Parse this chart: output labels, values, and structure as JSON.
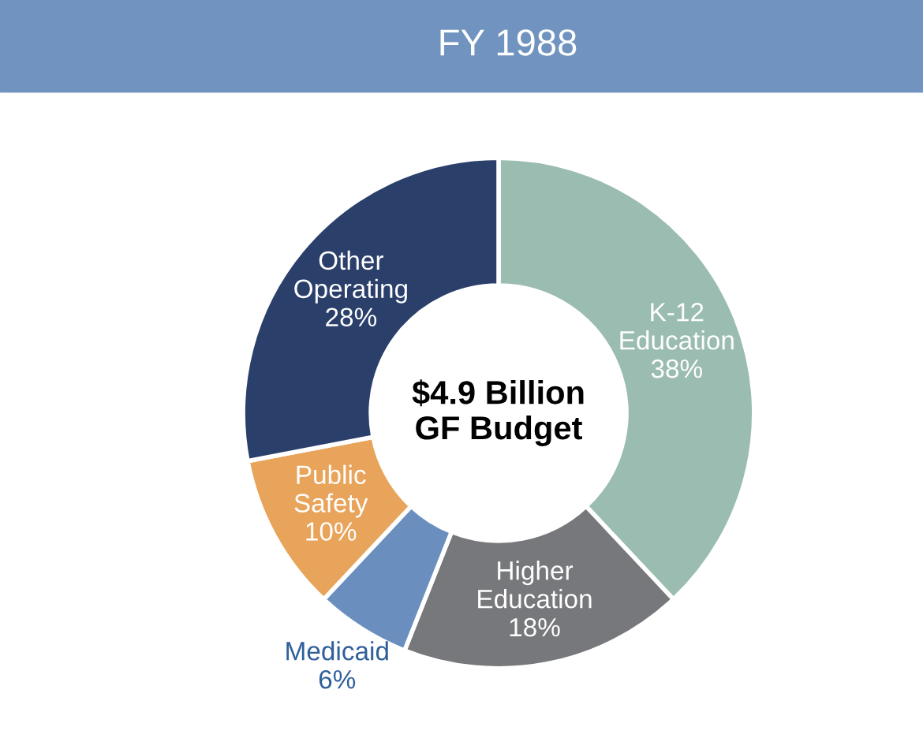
{
  "chart_data": {
    "type": "donut",
    "title": "FY 1988",
    "categories": [
      "K-12\nEducation",
      "Higher\nEducation",
      "Medicaid",
      "Public\nSafety",
      "Other\nOperating"
    ],
    "values": [
      38,
      18,
      6,
      10,
      28
    ],
    "value_labels": [
      "38%",
      "18%",
      "6%",
      "10%",
      "28%"
    ],
    "colors": [
      "#9bbcb0",
      "#77787b",
      "#6a8fbf",
      "#e8a45a",
      "#2b3f6b"
    ],
    "annotations": [
      "$4.9 Billion\nGF Budget"
    ],
    "legend": false
  }
}
